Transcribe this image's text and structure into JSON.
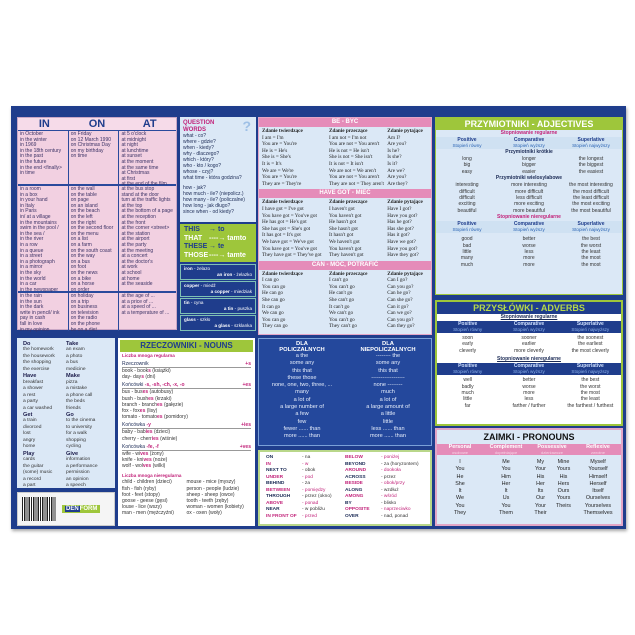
{
  "colors": {
    "navy": "#1f3d8c",
    "pink": "#f2d0e1",
    "light_blue": "#dbe8f6",
    "green": "#9ec63b",
    "magenta": "#c2237a",
    "header_pink": "#e58cb9"
  },
  "in_on_at": {
    "headers": [
      "IN",
      "ON",
      "AT"
    ],
    "rows": [
      [
        [
          "in October",
          "in the winter",
          "in 1969",
          "in the 18th century",
          "in the past",
          "in the future",
          "in the end <finally>",
          "in time"
        ],
        [
          "on Friday",
          "on 12 March 1990",
          "on Christmas Day",
          "on my birthday",
          "on time"
        ],
        [
          "at 5 o'clock",
          "at midnight",
          "at night",
          "at lunchtime",
          "at sunset",
          "at the moment",
          "at the same time",
          "at Christmas",
          "at first",
          "at the end of the film"
        ]
      ],
      [
        [
          "in a room",
          "in a box",
          "in your hand",
          "in Italy",
          "in Paris",
          "in/ at a village",
          "in the mountains",
          "swim in the pool /",
          "      in the sea /",
          "      in the river",
          "in a row",
          "in a queue",
          "in a street",
          "in a photograph",
          "in a mirror",
          "in the sky",
          "in the world",
          "in a car",
          "in the newspaper"
        ],
        [
          "on the wall",
          "on the table",
          "on page",
          "on an island",
          "on the beach",
          "on the left",
          "on the right",
          "on the second floor",
          "on the menu",
          "on a list",
          "on a farm",
          "on the south coast",
          "on the way",
          "on a bus",
          "on foot",
          "on the news",
          "on a bike",
          "on a horse",
          "on order"
        ],
        [
          "at the bus stop",
          "stand at the door",
          "turn at the traffic lights",
          "at the top",
          "at the bottom of a page",
          "at the reception",
          "at the front",
          "at the corner <street>",
          "at the station",
          "at the airport",
          "at the party",
          "at the meeting",
          "at a concert",
          "at the doctor's",
          "at work",
          "at school",
          "at home",
          "at the seaside"
        ]
      ],
      [
        [
          "in the rain",
          "in the sun",
          "in the dark",
          "write in pencil/ ink",
          "pay in cash",
          "fall in love",
          "in my opinion"
        ],
        [
          "on holiday",
          "on a trip",
          "on business",
          "on television",
          "on the radio",
          "on the phone",
          "be on a diet"
        ],
        [
          "at the age of ...",
          "at a price of ...",
          "at a speed of ...",
          "at a temperature of ..."
        ]
      ]
    ]
  },
  "question_words": {
    "title": "QUESTION WORDS",
    "mark": "?",
    "group1": [
      "what   - co?",
      "where  - gdzie?",
      "when   - kiedy?",
      "why    - dlaczego?",
      "which  - który?",
      "who    - kto / kogo?",
      "whose  - czyj?",
      "what time - która godzina?"
    ],
    "group2": [
      "how         - jak?",
      "how much  - ile? (niepolicz.)",
      "how many  - ile? (policzalne)",
      "how long    - jak długo?",
      "since when - od kiedy?"
    ]
  },
  "demonstratives": [
    {
      "en": "THIS",
      "arrow": "→",
      "pl": "to"
    },
    {
      "en": "THAT",
      "arrow": "----→",
      "pl": "tamto"
    },
    {
      "en": "THESE",
      "arrow": "→",
      "pl": "te"
    },
    {
      "en": "THOSE",
      "arrow": "----→",
      "pl": "tamte"
    }
  ],
  "materials": [
    {
      "material": "iron",
      "material_pl": "żelazo",
      "object": "an iron",
      "object_pl": "żelazko"
    },
    {
      "material": "copper",
      "material_pl": "miedź",
      "object": "a copper",
      "object_pl": "miedziak"
    },
    {
      "material": "tin",
      "material_pl": "cyna",
      "object": "a tin",
      "object_pl": "puszka"
    },
    {
      "material": "glass",
      "material_pl": "szkło",
      "object": "a glass",
      "object_pl": "szklanka"
    }
  ],
  "verb_tables": [
    {
      "title": "BE - BYĆ",
      "headers": [
        "Zdanie twierdzące",
        "Zdanie przeczące",
        "Zdanie pytające"
      ],
      "columns": [
        [
          "I am = I'm",
          "You are = You're",
          "He is = He's",
          "She is = She's",
          "It is = It's",
          "We are = We're",
          "You are = You're",
          "They are = They're"
        ],
        [
          "I am not = I'm not",
          "You are not = You aren't",
          "He is not = He isn't",
          "She is not = She isn't",
          "It is not = It isn't",
          "We are not = We aren't",
          "You are not = You aren't",
          "They are not = They aren't"
        ],
        [
          "Am I?",
          "Are you?",
          "Is he?",
          "Is she?",
          "Is it?",
          "Are we?",
          "Are you?",
          "Are they?"
        ]
      ]
    },
    {
      "title": "HAVE GOT - MIEĆ",
      "headers": [
        "Zdanie twierdzące",
        "Zdanie przeczące",
        "Zdanie pytające"
      ],
      "columns": [
        [
          "I have got = I've got",
          "You have got = You've got",
          "He has got = He's got",
          "She has got = She's got",
          "It has got = It's got",
          "We have got = We've got",
          "You have got = You've got",
          "They have got = They've got"
        ],
        [
          "I haven't got",
          "You haven't got",
          "He hasn't got",
          "She hasn't got",
          "It hasn't got",
          "We haven't got",
          "You haven't got",
          "They haven't got"
        ],
        [
          "Have I got?",
          "Have you got?",
          "Has he got?",
          "Has she got?",
          "Has it got?",
          "Have we got?",
          "Have you got?",
          "Have they got?"
        ]
      ]
    },
    {
      "title": "CAN - MÓC, POTRAFIĆ",
      "headers": [
        "Zdanie twierdzące",
        "Zdanie przeczące",
        "Zdanie pytające"
      ],
      "columns": [
        [
          "I can go",
          "You can go",
          "He can go",
          "She can go",
          "It can go",
          "We can go",
          "You can go",
          "They can go"
        ],
        [
          "I can't go",
          "You can't go",
          "He can't go",
          "She can't go",
          "It can't go",
          "We can't go",
          "You can't go",
          "They can't go"
        ],
        [
          "Can I go?",
          "Can you go?",
          "Can he go?",
          "Can she go?",
          "Can it go?",
          "Can we go?",
          "Can you go?",
          "Can they go?"
        ]
      ]
    }
  ],
  "adjectives": {
    "title": "PRZYMIOTNIKI - ADJECTIVES",
    "regular_label": "Stopniowanie regularne",
    "irregular_label": "Stopniowanie nieregularne",
    "degrees": [
      {
        "en": "Positive",
        "pl": "Stopień równy"
      },
      {
        "en": "Comparative",
        "pl": "Stopień wyższy"
      },
      {
        "en": "Superlative",
        "pl": "Stopień najwyższy"
      }
    ],
    "short_label": "Przymiotniki krótkie",
    "short": [
      [
        "long",
        "big",
        "easy"
      ],
      [
        "longer",
        "bigger",
        "easier"
      ],
      [
        "the longest",
        "the biggest",
        "the easiest"
      ]
    ],
    "long_label": "Przymiotniki wielosylabowe",
    "long": [
      [
        "interesting",
        "difficult",
        "difficult",
        "exciting",
        "beautiful"
      ],
      [
        "more interesting",
        "more difficult",
        "less difficult",
        "more exciting",
        "more beautiful"
      ],
      [
        "the most interesting",
        "the most difficult",
        "the least difficult",
        "the most exciting",
        "the most beautiful"
      ]
    ],
    "irregular": [
      [
        "good",
        "bad",
        "little",
        "many",
        "much"
      ],
      [
        "better",
        "worse",
        "less",
        "more",
        "more"
      ],
      [
        "the best",
        "the worst",
        "the least",
        "the most",
        "the most"
      ]
    ]
  },
  "collocations": {
    "col1": [
      {
        "verb": "Do",
        "items": [
          "the homework",
          "the housework",
          "the shopping",
          "the exercise"
        ]
      },
      {
        "verb": "Have",
        "items": [
          "breakfast",
          "a shower",
          "a rest",
          "a party",
          "a car washed"
        ]
      },
      {
        "verb": "Get",
        "items": [
          "a train",
          "divorced",
          "lost",
          "angry",
          "home"
        ]
      },
      {
        "verb": "Play",
        "items": [
          "cards",
          "the guitar",
          "(some) music",
          "a record",
          "a part"
        ]
      }
    ],
    "col2": [
      {
        "verb": "Take",
        "items": [
          "an exam",
          "a photo",
          "a bus",
          "medicine"
        ]
      },
      {
        "verb": "Make",
        "items": [
          "pizza",
          "a mistake",
          "a phone call",
          "the beds",
          "friends"
        ]
      },
      {
        "verb": "Go",
        "items": [
          "to the cinema",
          "to university",
          "for a walk",
          "shopping",
          "cycling"
        ]
      },
      {
        "verb": "Give",
        "items": [
          "information",
          "a performance",
          "permission",
          "an opinion",
          "a speech"
        ]
      }
    ]
  },
  "logo": {
    "brand_a": "DEN",
    "brand_b": "FORM"
  },
  "nouns": {
    "title": "RZECZOWNIKI - NOUNS",
    "regular_label": "Liczba mnoga regularna",
    "rules": [
      {
        "rule": "Rzeczownik",
        "pattern": "",
        "suffix": "+s",
        "examples": [
          [
            "book - book",
            "s",
            " (książki)"
          ],
          [
            "day- day",
            "s",
            " (dni)"
          ]
        ]
      },
      {
        "rule": "Końcówki ",
        "pattern": "-s, -sh, -ch, -x, -o",
        "suffix": "+es",
        "examples": [
          [
            "bus - bus",
            "es",
            " (autobusy)"
          ],
          [
            "bush - bush",
            "es",
            " (krzaki)"
          ],
          [
            "branch - branch",
            "es",
            " (gałęzie)"
          ],
          [
            "fox - fox",
            "es",
            " (lisy)"
          ],
          [
            "tomato - tomato",
            "es",
            " (pomidory)"
          ]
        ]
      },
      {
        "rule": "Końcówka ",
        "pattern": "-y",
        "suffix": "+ies",
        "examples": [
          [
            "baby - bab",
            "ies",
            " (dzieci)"
          ],
          [
            "cherry - cherr",
            "ies",
            " (wiśnie)"
          ]
        ]
      },
      {
        "rule": "Końcówka ",
        "pattern": "-fe, -f",
        "suffix": "+ves",
        "examples": [
          [
            "wife - wi",
            "ves",
            " (żony)"
          ],
          [
            "knife - kni",
            "ves",
            " (noże)"
          ],
          [
            "wolf - wol",
            "ves",
            " (wilki)"
          ]
        ]
      }
    ],
    "irregular_label": "Liczba mnoga nieregularna",
    "irregular": [
      [
        "child - children (dzieci)",
        "fish - fish (ryby)",
        "foot - feet (stopy)",
        "goose - geese (gęsi)",
        "louse - lice (wszy)",
        "man - men (mężczyźni)"
      ],
      [
        "mouse - mice (myszy)",
        "person - people (ludzie)",
        "sheep - sheep (owce)",
        "tooth - teeth (zęby)",
        "woman - women (kobiety)",
        "ox - oxen (woły)"
      ]
    ]
  },
  "quantifiers": {
    "countable_title": [
      "DLA",
      "POLICZALNYCH"
    ],
    "uncountable_title": [
      "DLA",
      "NIEPOLICZALNYCH"
    ],
    "countable": [
      "a          the",
      "some     any",
      "this       that",
      "these    those",
      "none, one, two, three, ...",
      "many",
      "a lot of",
      "a large number of",
      "a few",
      "few",
      "fewer ...... than",
      "more ...... than"
    ],
    "uncountable": [
      "--------    the",
      "some     any",
      "this       that",
      "------------------",
      "none    --------",
      "much",
      "a lot of",
      "a large amount of",
      "a little",
      "little",
      "less ...... than",
      "more ...... than"
    ]
  },
  "place_prepositions": {
    "col1": [
      {
        "en": "ON",
        "pl": "- na",
        "hl": false
      },
      {
        "en": "IN",
        "pl": "- w",
        "hl": true
      },
      {
        "en": "NEXT TO",
        "pl": "- obok",
        "hl": false
      },
      {
        "en": "UNDER",
        "pl": "- pod",
        "hl": true
      },
      {
        "en": "BEHIND",
        "pl": "- za",
        "hl": false
      },
      {
        "en": "BETWEEN",
        "pl": "- pomiędzy",
        "hl": true
      },
      {
        "en": "THROUGH",
        "pl": "- przez (okno)",
        "hl": false
      },
      {
        "en": "ABOVE",
        "pl": "- ponad",
        "hl": true
      },
      {
        "en": "NEAR",
        "pl": "- w pobliżu",
        "hl": false
      },
      {
        "en": "IN FRONT OF",
        "pl": "- przed",
        "hl": true
      }
    ],
    "col2": [
      {
        "en": "BELOW",
        "pl": "- poniżej",
        "hl": true
      },
      {
        "en": "BEYOND",
        "pl": "- za (horyzontem)",
        "hl": false
      },
      {
        "en": "AROUND",
        "pl": "- dookoła",
        "hl": true
      },
      {
        "en": "ACROSS",
        "pl": "- przez",
        "hl": false
      },
      {
        "en": "BESIDE",
        "pl": "- obok/przy",
        "hl": true
      },
      {
        "en": "ALONG",
        "pl": "- wzdłuż",
        "hl": false
      },
      {
        "en": "AMONG",
        "pl": "- wśród",
        "hl": true
      },
      {
        "en": "BY",
        "pl": "- blisko",
        "hl": false
      },
      {
        "en": "OPPOSITE",
        "pl": "- naprzeciwko",
        "hl": true
      },
      {
        "en": "OVER",
        "pl": "- nad, ponad",
        "hl": false
      }
    ]
  },
  "adverbs": {
    "title": "PRZYSŁÓWKI - ADVERBS",
    "regular_label": "Stopniowanie regularne",
    "irregular_label": "Stopniowanie nieregularne",
    "regular": [
      [
        "soon",
        "early",
        "cleverly"
      ],
      [
        "sooner",
        "earlier",
        "more cleverly"
      ],
      [
        "the soonest",
        "the earliest",
        "the most cleverly"
      ]
    ],
    "irregular": [
      [
        "well",
        "badly",
        "much",
        "little",
        "far"
      ],
      [
        "better",
        "worse",
        "more",
        "less",
        "farther / further"
      ],
      [
        "the best",
        "the worst",
        "the most",
        "the least",
        "the farthest / furthest"
      ]
    ]
  },
  "pronouns": {
    "title": "ZAIMKI - PRONOUNS",
    "headers": [
      {
        "en": "Personal",
        "pl": "osobowe"
      },
      {
        "en": "Complement",
        "pl": "dopełniające"
      },
      {
        "en": "Possessive",
        "pl": "dzierżawcze"
      },
      {
        "en": "Reflexive",
        "pl": "zwrotne"
      }
    ],
    "personal": [
      "I",
      "You",
      "He",
      "She",
      "It",
      "We",
      "You",
      "They"
    ],
    "complement": [
      "Me",
      "You",
      "Him",
      "Her",
      "It",
      "Us",
      "You",
      "Them"
    ],
    "possessive_adj": [
      "My",
      "Your",
      "His",
      "Her",
      "Its",
      "Our",
      "Your",
      "Their"
    ],
    "possessive_pron": [
      "Mine",
      "Yours",
      "His",
      "Hers",
      "",
      "Ours",
      "Yours",
      "Theirs"
    ],
    "reflexive": [
      "Myself",
      "Yourself",
      "Himself",
      "Herself",
      "Itself",
      "Ourselves",
      "Yourselves",
      "Themselves"
    ]
  }
}
